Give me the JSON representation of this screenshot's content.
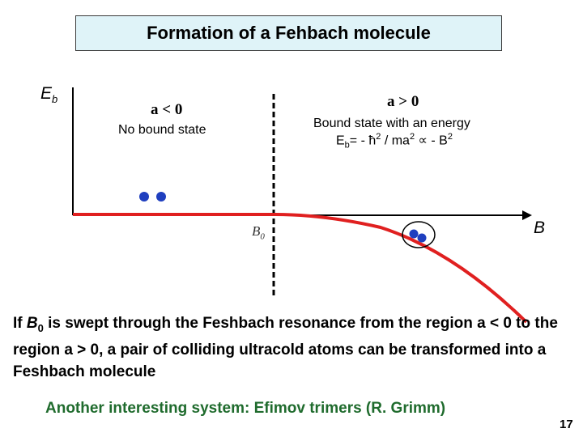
{
  "title": "Formation of a Fehbach molecule",
  "axes": {
    "y_label_base": "E",
    "y_label_sub": "b",
    "x_label": "B"
  },
  "b0_label": {
    "base": "B",
    "sub": "0"
  },
  "regions": {
    "negative": {
      "condition": "a < 0",
      "description": "No bound state"
    },
    "positive": {
      "condition": "a > 0",
      "description": "Bound state with an energy",
      "energy_parts": {
        "e": "E",
        "e_sub": "b",
        "eq": "= - ħ",
        "sup1": "2",
        "mid": " / ma",
        "sup2": "2",
        "prop": " ∝ - B",
        "sup3": "2"
      }
    }
  },
  "paragraph": {
    "p1": "If ",
    "b": "B",
    "b_sub": "0",
    "p2": " is swept through the Feshbach resonance from the region a < 0 to the region a > 0, a pair of colliding ultracold atoms can be transformed into a Feshbach molecule"
  },
  "note": "Another interesting system: Efimov trimers (R. Grimm)",
  "page_number": "17",
  "colors": {
    "curve": "#e02020",
    "atom": "#1f3fbf",
    "title_bg": "#dff3f8",
    "note": "#1f6b2d"
  }
}
